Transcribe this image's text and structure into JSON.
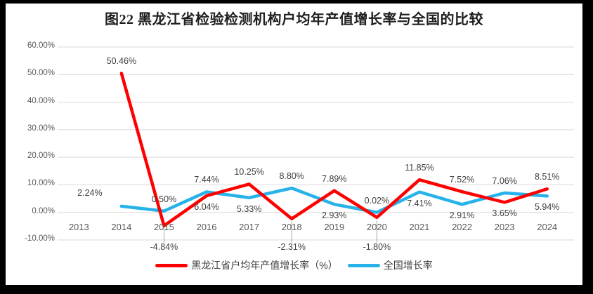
{
  "chart_data": {
    "type": "line",
    "title": "图22 黑龙江省检验检测机构户均年产值增长率与全国的比较",
    "categories": [
      "2013",
      "2014",
      "2015",
      "2016",
      "2017",
      "2018",
      "2019",
      "2020",
      "2021",
      "2022",
      "2023",
      "2024"
    ],
    "series": [
      {
        "name": "黑龙江省户均年产值增长率（%）",
        "color": "#FF0000",
        "values": [
          null,
          50.46,
          -4.84,
          6.04,
          10.25,
          -2.31,
          7.89,
          -1.8,
          11.85,
          7.52,
          3.65,
          8.51
        ],
        "labels": [
          "",
          "50.46%",
          "-4.84%",
          "6.04%",
          "10.25%",
          "-2.31%",
          "7.89%",
          "-1.80%",
          "11.85%",
          "7.52%",
          "3.65%",
          "8.51%"
        ],
        "label_placement": [
          null,
          "above",
          "leader",
          "below",
          "above",
          "leader",
          "above",
          "leader",
          "above",
          "above",
          "below",
          "above"
        ]
      },
      {
        "name": "全国增长率",
        "color": "#27B2EA",
        "values": [
          null,
          2.24,
          0.5,
          7.44,
          5.33,
          8.8,
          2.93,
          0.02,
          7.41,
          2.91,
          7.06,
          5.94
        ],
        "labels": [
          "",
          "2.24%",
          "0.50%",
          "7.44%",
          "5.33%",
          "8.80%",
          "2.93%",
          "0.02%",
          "7.41%",
          "2.91%",
          "7.06%",
          "5.94%"
        ],
        "label_placement": [
          null,
          "above-left",
          "above",
          "above",
          "below",
          "above",
          "below",
          "above",
          "below",
          "below",
          "above",
          "below"
        ]
      }
    ],
    "y_axis": {
      "min": -10,
      "max": 60,
      "step": 10,
      "tick_labels": [
        "60.00%",
        "50.00%",
        "40.00%",
        "30.00%",
        "20.00%",
        "10.00%",
        "0.00%",
        "-10.00%"
      ]
    },
    "grid": true,
    "legend_position": "bottom",
    "colors": {
      "gridline": "#D9D9D9",
      "leader_line": "#A6A6A6",
      "axis_text": "#595959",
      "data_label_text": "#404040",
      "plot_background": "#FFFFFF",
      "frame": "#000000"
    }
  }
}
